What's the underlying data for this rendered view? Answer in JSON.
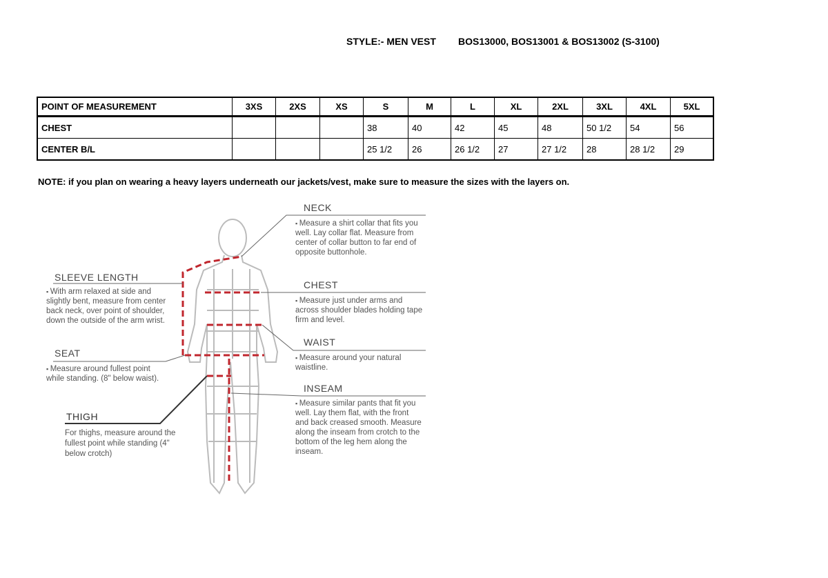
{
  "header": {
    "style": "STYLE:- MEN VEST",
    "codes": "BOS13000, BOS13001 & BOS13002 (S-3100)"
  },
  "table": {
    "columns": [
      "POINT OF MEASUREMENT",
      "3XS",
      "2XS",
      "XS",
      "S",
      "M",
      "L",
      "XL",
      "2XL",
      "3XL",
      "4XL",
      "5XL"
    ],
    "rows": [
      [
        "CHEST",
        "",
        "",
        "",
        "38",
        "40",
        "42",
        "45",
        "48",
        "50 1/2",
        "54",
        "56"
      ],
      [
        "CENTER B/L",
        "",
        "",
        "",
        "25 1/2",
        "26",
        "26 1/2",
        "27",
        "27 1/2",
        "28",
        "28 1/2",
        "29"
      ]
    ]
  },
  "note": "NOTE: if you plan on wearing a heavy layers underneath our jackets/vest, make sure to measure the sizes with the layers on.",
  "guide": {
    "neck": {
      "title": "NECK",
      "text": "Measure a shirt collar that fits you well. Lay collar flat. Measure from center of collar button to far end of opposite buttonhole."
    },
    "chest": {
      "title": "CHEST",
      "text": "Measure just under arms and across shoulder blades holding tape firm and level."
    },
    "waist": {
      "title": "WAIST",
      "text": "Measure around your natural waistline."
    },
    "inseam": {
      "title": "INSEAM",
      "text": "Measure similar pants that fit you well. Lay them flat, with the front and back creased smooth. Measure along the inseam from crotch to the bottom of the leg hem along the inseam."
    },
    "sleeve": {
      "title": "SLEEVE LENGTH",
      "text": "With arm relaxed at side and slightly bent, measure from center back neck, over point of shoulder, down the outside of the arm wrist."
    },
    "seat": {
      "title": "SEAT",
      "text": "Measure around fullest point while standing. (8\" below waist)."
    },
    "thigh": {
      "title": "THIGH",
      "text": "For thighs, measure around the fullest point while standing (4\" below crotch)"
    }
  },
  "colors": {
    "measure_line": "#c0262d",
    "figure": "#bbbbbb"
  }
}
